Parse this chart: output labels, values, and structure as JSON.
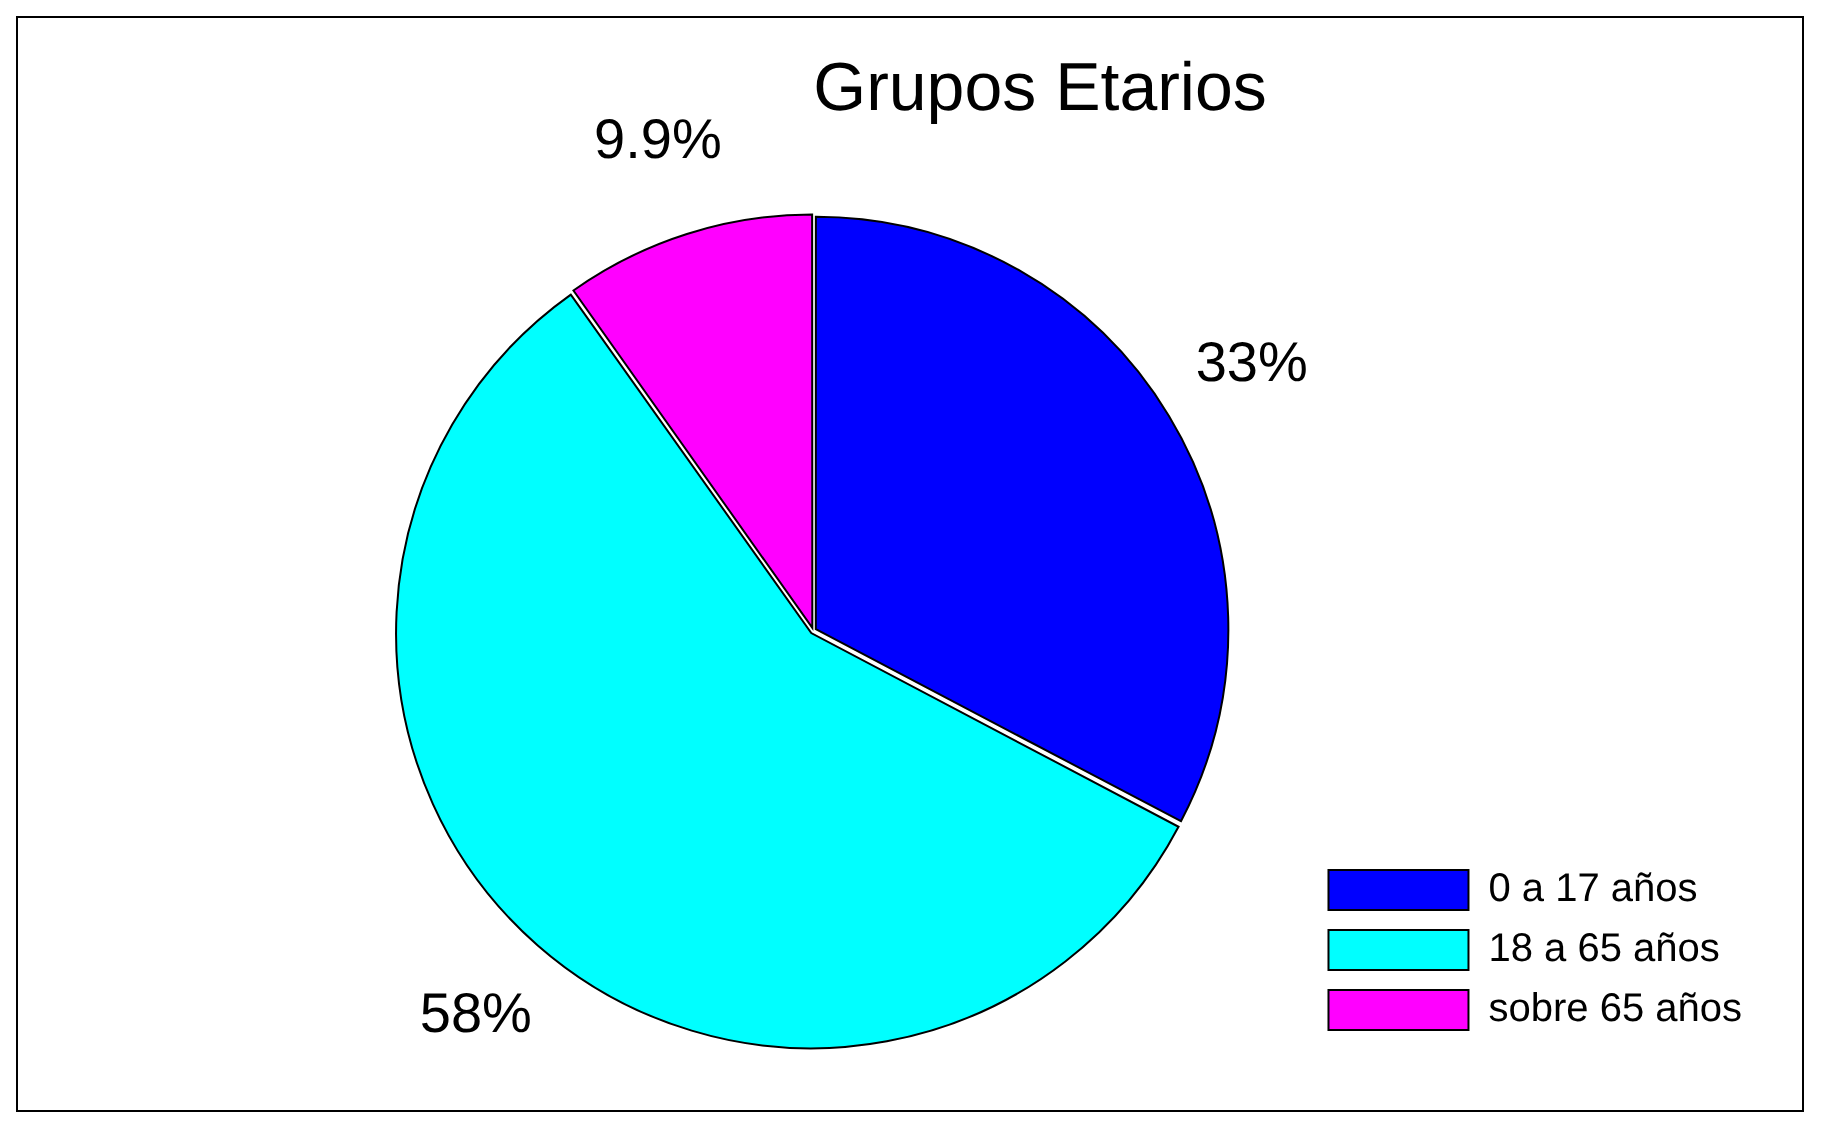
{
  "chart_data": {
    "type": "pie",
    "title": "Grupos Etarios",
    "categories": [
      "0 a 17 años",
      "18 a 65 años",
      "sobre 65 años"
    ],
    "values": [
      33,
      58,
      9.9
    ],
    "value_labels": [
      "33%",
      "58%",
      "9.9%"
    ],
    "colors": [
      "#0000ff",
      "#00ffff",
      "#ff00ff"
    ],
    "legend": "bottom right"
  }
}
